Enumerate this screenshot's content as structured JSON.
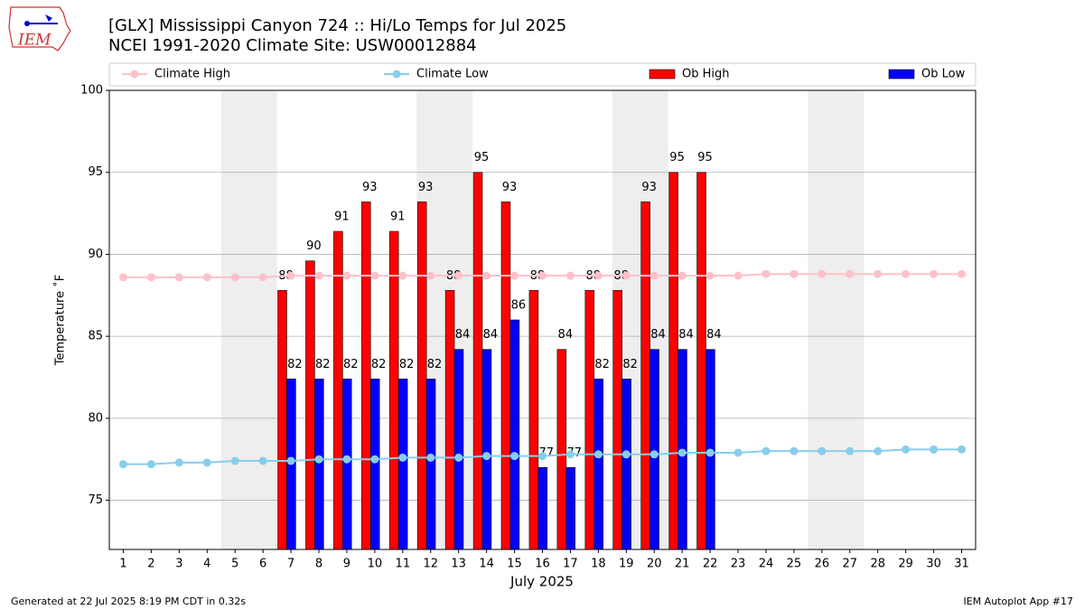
{
  "chart_data": {
    "type": "bar",
    "logo_text": "IEM",
    "title": "[GLX] Mississippi Canyon 724 :: Hi/Lo Temps for Jul 2025",
    "subtitle": "NCEI 1991-2020 Climate Site: USW00012884",
    "x_label": "July 2025",
    "y_label": "Temperature ˚F",
    "footer_left": "Generated at 22 Jul 2025 8:19 PM CDT in 0.32s",
    "footer_right": "IEM Autoplot App #17",
    "x": [
      1,
      2,
      3,
      4,
      5,
      6,
      7,
      8,
      9,
      10,
      11,
      12,
      13,
      14,
      15,
      16,
      17,
      18,
      19,
      20,
      21,
      22,
      23,
      24,
      25,
      26,
      27,
      28,
      29,
      30,
      31
    ],
    "xlim": [
      0.5,
      31.5
    ],
    "xticks": [
      1,
      2,
      3,
      4,
      5,
      6,
      7,
      8,
      9,
      10,
      11,
      12,
      13,
      14,
      15,
      16,
      17,
      18,
      19,
      20,
      21,
      22,
      23,
      24,
      25,
      26,
      27,
      28,
      29,
      30,
      31
    ],
    "ylim": [
      72,
      100
    ],
    "yticks": [
      75,
      80,
      85,
      90,
      95,
      100
    ],
    "grid": true,
    "shaded_days": [
      5,
      6,
      12,
      13,
      19,
      20,
      26,
      27
    ],
    "series": [
      {
        "name": "Climate High",
        "type": "line",
        "color": "#ffc0cb",
        "values": [
          88.6,
          88.6,
          88.6,
          88.6,
          88.6,
          88.6,
          88.7,
          88.7,
          88.7,
          88.7,
          88.7,
          88.7,
          88.7,
          88.7,
          88.7,
          88.7,
          88.7,
          88.7,
          88.7,
          88.7,
          88.7,
          88.7,
          88.7,
          88.8,
          88.8,
          88.8,
          88.8,
          88.8,
          88.8,
          88.8,
          88.8
        ]
      },
      {
        "name": "Climate Low",
        "type": "line",
        "color": "#87ceeb",
        "values": [
          77.2,
          77.2,
          77.3,
          77.3,
          77.4,
          77.4,
          77.4,
          77.5,
          77.5,
          77.5,
          77.6,
          77.6,
          77.6,
          77.7,
          77.7,
          77.7,
          77.8,
          77.8,
          77.8,
          77.8,
          77.9,
          77.9,
          77.9,
          78.0,
          78.0,
          78.0,
          78.0,
          78.0,
          78.1,
          78.1,
          78.1
        ]
      },
      {
        "name": "Ob High",
        "type": "bar",
        "color": "#ff0000",
        "offset": -1,
        "values": [
          null,
          null,
          null,
          null,
          null,
          null,
          87.8,
          89.6,
          91.4,
          93.2,
          91.4,
          93.2,
          87.8,
          95,
          93.2,
          87.8,
          84.2,
          87.8,
          87.8,
          93.2,
          95,
          95,
          null,
          null,
          null,
          null,
          null,
          null,
          null,
          null,
          null
        ],
        "value_labels": [
          null,
          null,
          null,
          null,
          null,
          null,
          "88",
          "90",
          "91",
          "93",
          "91",
          "93",
          "88",
          "95",
          "93",
          "88",
          "84",
          "88",
          "88",
          "93",
          "95",
          "95",
          null,
          null,
          null,
          null,
          null,
          null,
          null,
          null,
          null
        ]
      },
      {
        "name": "Ob Low",
        "type": "bar",
        "color": "#0000ff",
        "offset": 0,
        "values": [
          null,
          null,
          null,
          null,
          null,
          null,
          82.4,
          82.4,
          82.4,
          82.4,
          82.4,
          82.4,
          84.2,
          84.2,
          86,
          77,
          77,
          82.4,
          82.4,
          84.2,
          84.2,
          84.2,
          null,
          null,
          null,
          null,
          null,
          null,
          null,
          null,
          null
        ],
        "value_labels": [
          null,
          null,
          null,
          null,
          null,
          null,
          "82",
          "82",
          "82",
          "82",
          "82",
          "82",
          "84",
          "84",
          "86",
          "77",
          "77",
          "82",
          "82",
          "84",
          "84",
          "84",
          null,
          null,
          null,
          null,
          null,
          null,
          null,
          null,
          null
        ]
      }
    ]
  }
}
